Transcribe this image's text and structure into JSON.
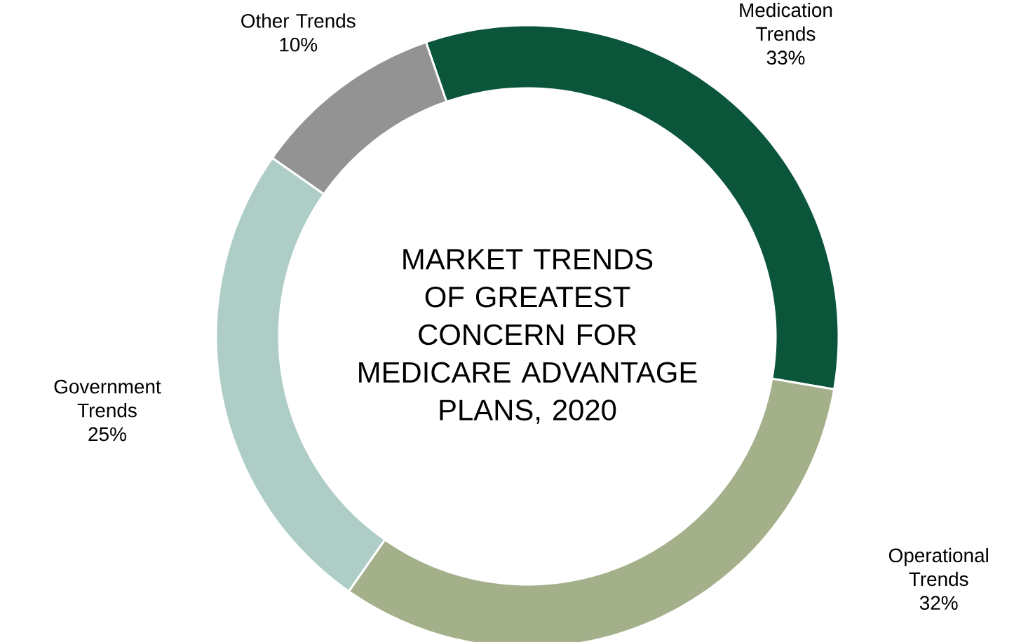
{
  "chart_data": {
    "type": "donut",
    "title": "MARKET TRENDS OF GREATEST CONCERN FOR MEDICARE ADVANTAGE PLANS, 2020",
    "categories": [
      "Medication Trends",
      "Operational Trends",
      "Government Trends",
      "Other Trends"
    ],
    "values": [
      33,
      32,
      25,
      10
    ],
    "colors": [
      "#0b563a",
      "#a3b08a",
      "#aecdc6",
      "#939393"
    ],
    "value_labels": [
      "33%",
      "32%",
      "25%",
      "10%"
    ]
  }
}
